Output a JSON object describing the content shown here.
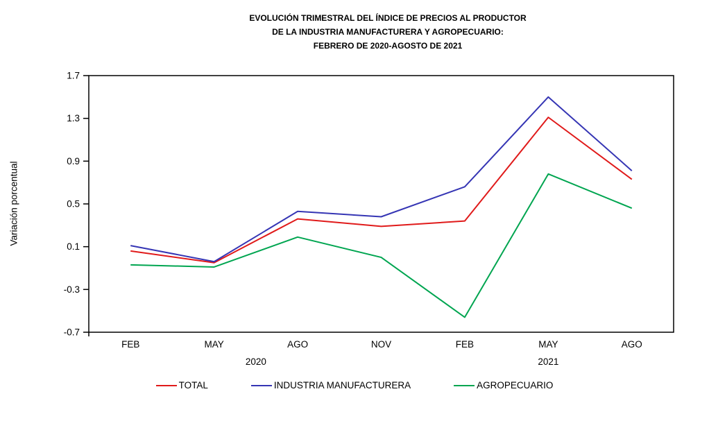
{
  "title_lines": [
    "EVOLUCIÓN TRIMESTRAL DEL ÍNDICE DE PRECIOS AL PRODUCTOR",
    "DE LA INDUSTRIA MANUFACTURERA Y AGROPECUARIO:",
    "FEBRERO DE 2020-AGOSTO DE 2021"
  ],
  "chart_data": {
    "type": "line",
    "title": "EVOLUCIÓN TRIMESTRAL DEL ÍNDICE DE PRECIOS AL PRODUCTOR DE LA INDUSTRIA MANUFACTURERA Y AGROPECUARIO: FEBRERO DE 2020-AGOSTO DE 2021",
    "xlabel": "",
    "ylabel": "Variación porcentual",
    "categories": [
      "FEB",
      "MAY",
      "AGO",
      "NOV",
      "FEB",
      "MAY",
      "AGO"
    ],
    "year_groups": [
      {
        "label": "2020",
        "span": [
          0,
          3
        ]
      },
      {
        "label": "2021",
        "span": [
          4,
          6
        ]
      }
    ],
    "ylim": [
      -0.7,
      1.7
    ],
    "yticks": [
      "1.7",
      "1.3",
      "0.9",
      "0.5",
      "0.1",
      "-0.3",
      "-0.7"
    ],
    "ytick_values": [
      1.7,
      1.3,
      0.9,
      0.5,
      0.1,
      -0.3,
      -0.7
    ],
    "grid": false,
    "legend_position": "bottom",
    "axis_color": "#000000",
    "series": [
      {
        "name": "TOTAL",
        "color": "#e01a1a",
        "values": [
          0.06,
          -0.05,
          0.36,
          0.29,
          0.34,
          1.31,
          0.73
        ]
      },
      {
        "name": "INDUSTRIA MANUFACTURERA",
        "color": "#3535b4",
        "values": [
          0.11,
          -0.04,
          0.43,
          0.38,
          0.66,
          1.5,
          0.81
        ]
      },
      {
        "name": "AGROPECUARIO",
        "color": "#00a550",
        "values": [
          -0.07,
          -0.09,
          0.19,
          0.0,
          -0.56,
          0.78,
          0.46
        ]
      }
    ]
  }
}
